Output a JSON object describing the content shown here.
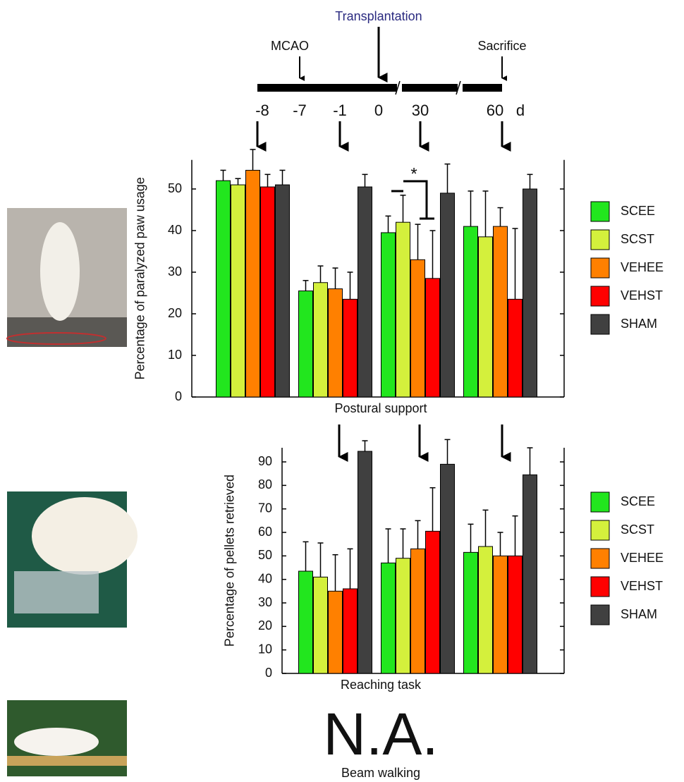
{
  "timeline": {
    "title": "Transplantation",
    "events": [
      "MCAO",
      "Sacrifice"
    ],
    "days": [
      -8,
      -7,
      -1,
      0,
      30,
      60
    ],
    "unit": "d"
  },
  "chart_data": [
    {
      "type": "bar",
      "ylabel": "Percentage of paralyzed paw usage",
      "xlabel": "Postural support",
      "annotation": "*",
      "categories": [
        null,
        null,
        null,
        null
      ],
      "ylim": [
        0,
        57
      ],
      "yticks": [
        0,
        10,
        20,
        30,
        40,
        50
      ],
      "series": [
        {
          "name": "SCEE",
          "color": "#22e61e",
          "values": [
            52,
            25.5,
            39.5,
            41
          ],
          "errors": [
            2.5,
            2.5,
            4,
            8.5
          ]
        },
        {
          "name": "SCST",
          "color": "#d4f03c",
          "values": [
            51,
            27.5,
            42,
            38.5
          ],
          "errors": [
            1.5,
            4,
            6.5,
            11
          ]
        },
        {
          "name": "VEHEE",
          "color": "#ff8000",
          "values": [
            54.5,
            26,
            33,
            41
          ],
          "errors": [
            5,
            5,
            8.5,
            4.5
          ]
        },
        {
          "name": "VEHST",
          "color": "#ff0000",
          "values": [
            50.5,
            23.5,
            28.5,
            23.5
          ],
          "errors": [
            3,
            6.5,
            11.5,
            17
          ]
        },
        {
          "name": "SHAM",
          "color": "#404040",
          "values": [
            51,
            50.5,
            49,
            50
          ],
          "errors": [
            3.5,
            3,
            7,
            3.5
          ]
        }
      ]
    },
    {
      "type": "bar",
      "ylabel": "Percentage of pellets retrieved",
      "xlabel": "Reaching task",
      "categories": [
        null,
        null,
        null
      ],
      "ylim": [
        0,
        96
      ],
      "yticks": [
        0,
        10,
        20,
        30,
        40,
        50,
        60,
        70,
        80,
        90
      ],
      "series": [
        {
          "name": "SCEE",
          "color": "#22e61e",
          "values": [
            43.5,
            47,
            51.5
          ],
          "errors": [
            12.5,
            14.5,
            12
          ]
        },
        {
          "name": "SCST",
          "color": "#d4f03c",
          "values": [
            41,
            49,
            54
          ],
          "errors": [
            14.5,
            12.5,
            15.5
          ]
        },
        {
          "name": "VEHEE",
          "color": "#ff8000",
          "values": [
            35,
            53,
            50
          ],
          "errors": [
            15.5,
            12,
            10
          ]
        },
        {
          "name": "VEHST",
          "color": "#ff0000",
          "values": [
            36,
            60.5,
            50
          ],
          "errors": [
            17,
            18.5,
            17
          ]
        },
        {
          "name": "SHAM",
          "color": "#404040",
          "values": [
            94.5,
            89,
            84.5
          ],
          "errors": [
            4.5,
            10.5,
            11.5
          ]
        }
      ]
    }
  ],
  "beam_walking": {
    "result": "N.A.",
    "label": "Beam walking"
  }
}
